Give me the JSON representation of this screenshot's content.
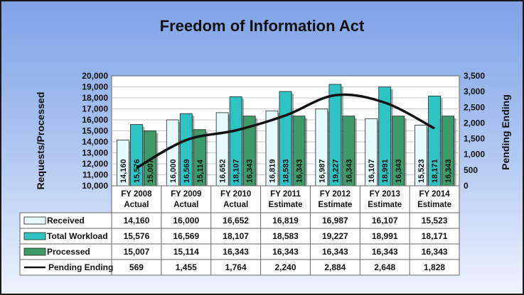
{
  "chart_data": {
    "type": "bar",
    "title": "Freedom of Information Act",
    "ylabel": "Requests/Processed",
    "y2label": "Pending Ending",
    "ylim": [
      10000,
      20000
    ],
    "y2lim": [
      0,
      3500
    ],
    "y_ticks": [
      "10,000",
      "11,000",
      "12,000",
      "13,000",
      "14,000",
      "15,000",
      "16,000",
      "17,000",
      "18,000",
      "19,000",
      "20,000"
    ],
    "y2_ticks": [
      "0",
      "500",
      "1,000",
      "1,500",
      "2,000",
      "2,500",
      "3,000",
      "3,500"
    ],
    "categories": [
      [
        "FY 2008",
        "Actual"
      ],
      [
        "FY 2009",
        "Actual"
      ],
      [
        "FY 2010",
        "Actual"
      ],
      [
        "FY 2011",
        "Estimate"
      ],
      [
        "FY 2012",
        "Estimate"
      ],
      [
        "FY 2013",
        "Estimate"
      ],
      [
        "FY 2014",
        "Estimate"
      ]
    ],
    "series": [
      {
        "name": "Received",
        "values": [
          14160,
          16000,
          16652,
          16819,
          16987,
          16107,
          15523
        ],
        "labels": [
          "14,160",
          "16,000",
          "16,652",
          "16,819",
          "16,987",
          "16,107",
          "15,523"
        ],
        "color": "#e6fbfb"
      },
      {
        "name": "Total Workload",
        "values": [
          15576,
          16569,
          18107,
          18583,
          19227,
          18991,
          18171
        ],
        "labels": [
          "15,576",
          "16,569",
          "18,107",
          "18,583",
          "19,227",
          "18,991",
          "18,171"
        ],
        "color": "#2fc4c4"
      },
      {
        "name": "Processed",
        "values": [
          15007,
          15114,
          16343,
          16343,
          16343,
          16343,
          16343
        ],
        "labels": [
          "15,007",
          "15,114",
          "16,343",
          "16,343",
          "16,343",
          "16,343",
          "16,343"
        ],
        "color": "#3f9a6a"
      }
    ],
    "line_series": {
      "name": "Pending Ending",
      "values": [
        569,
        1455,
        1764,
        2240,
        2884,
        2648,
        1828
      ],
      "labels": [
        "569",
        "1,455",
        "1,764",
        "2,240",
        "2,884",
        "2,648",
        "1,828"
      ],
      "color": "#111111"
    },
    "legend": "table-below"
  }
}
